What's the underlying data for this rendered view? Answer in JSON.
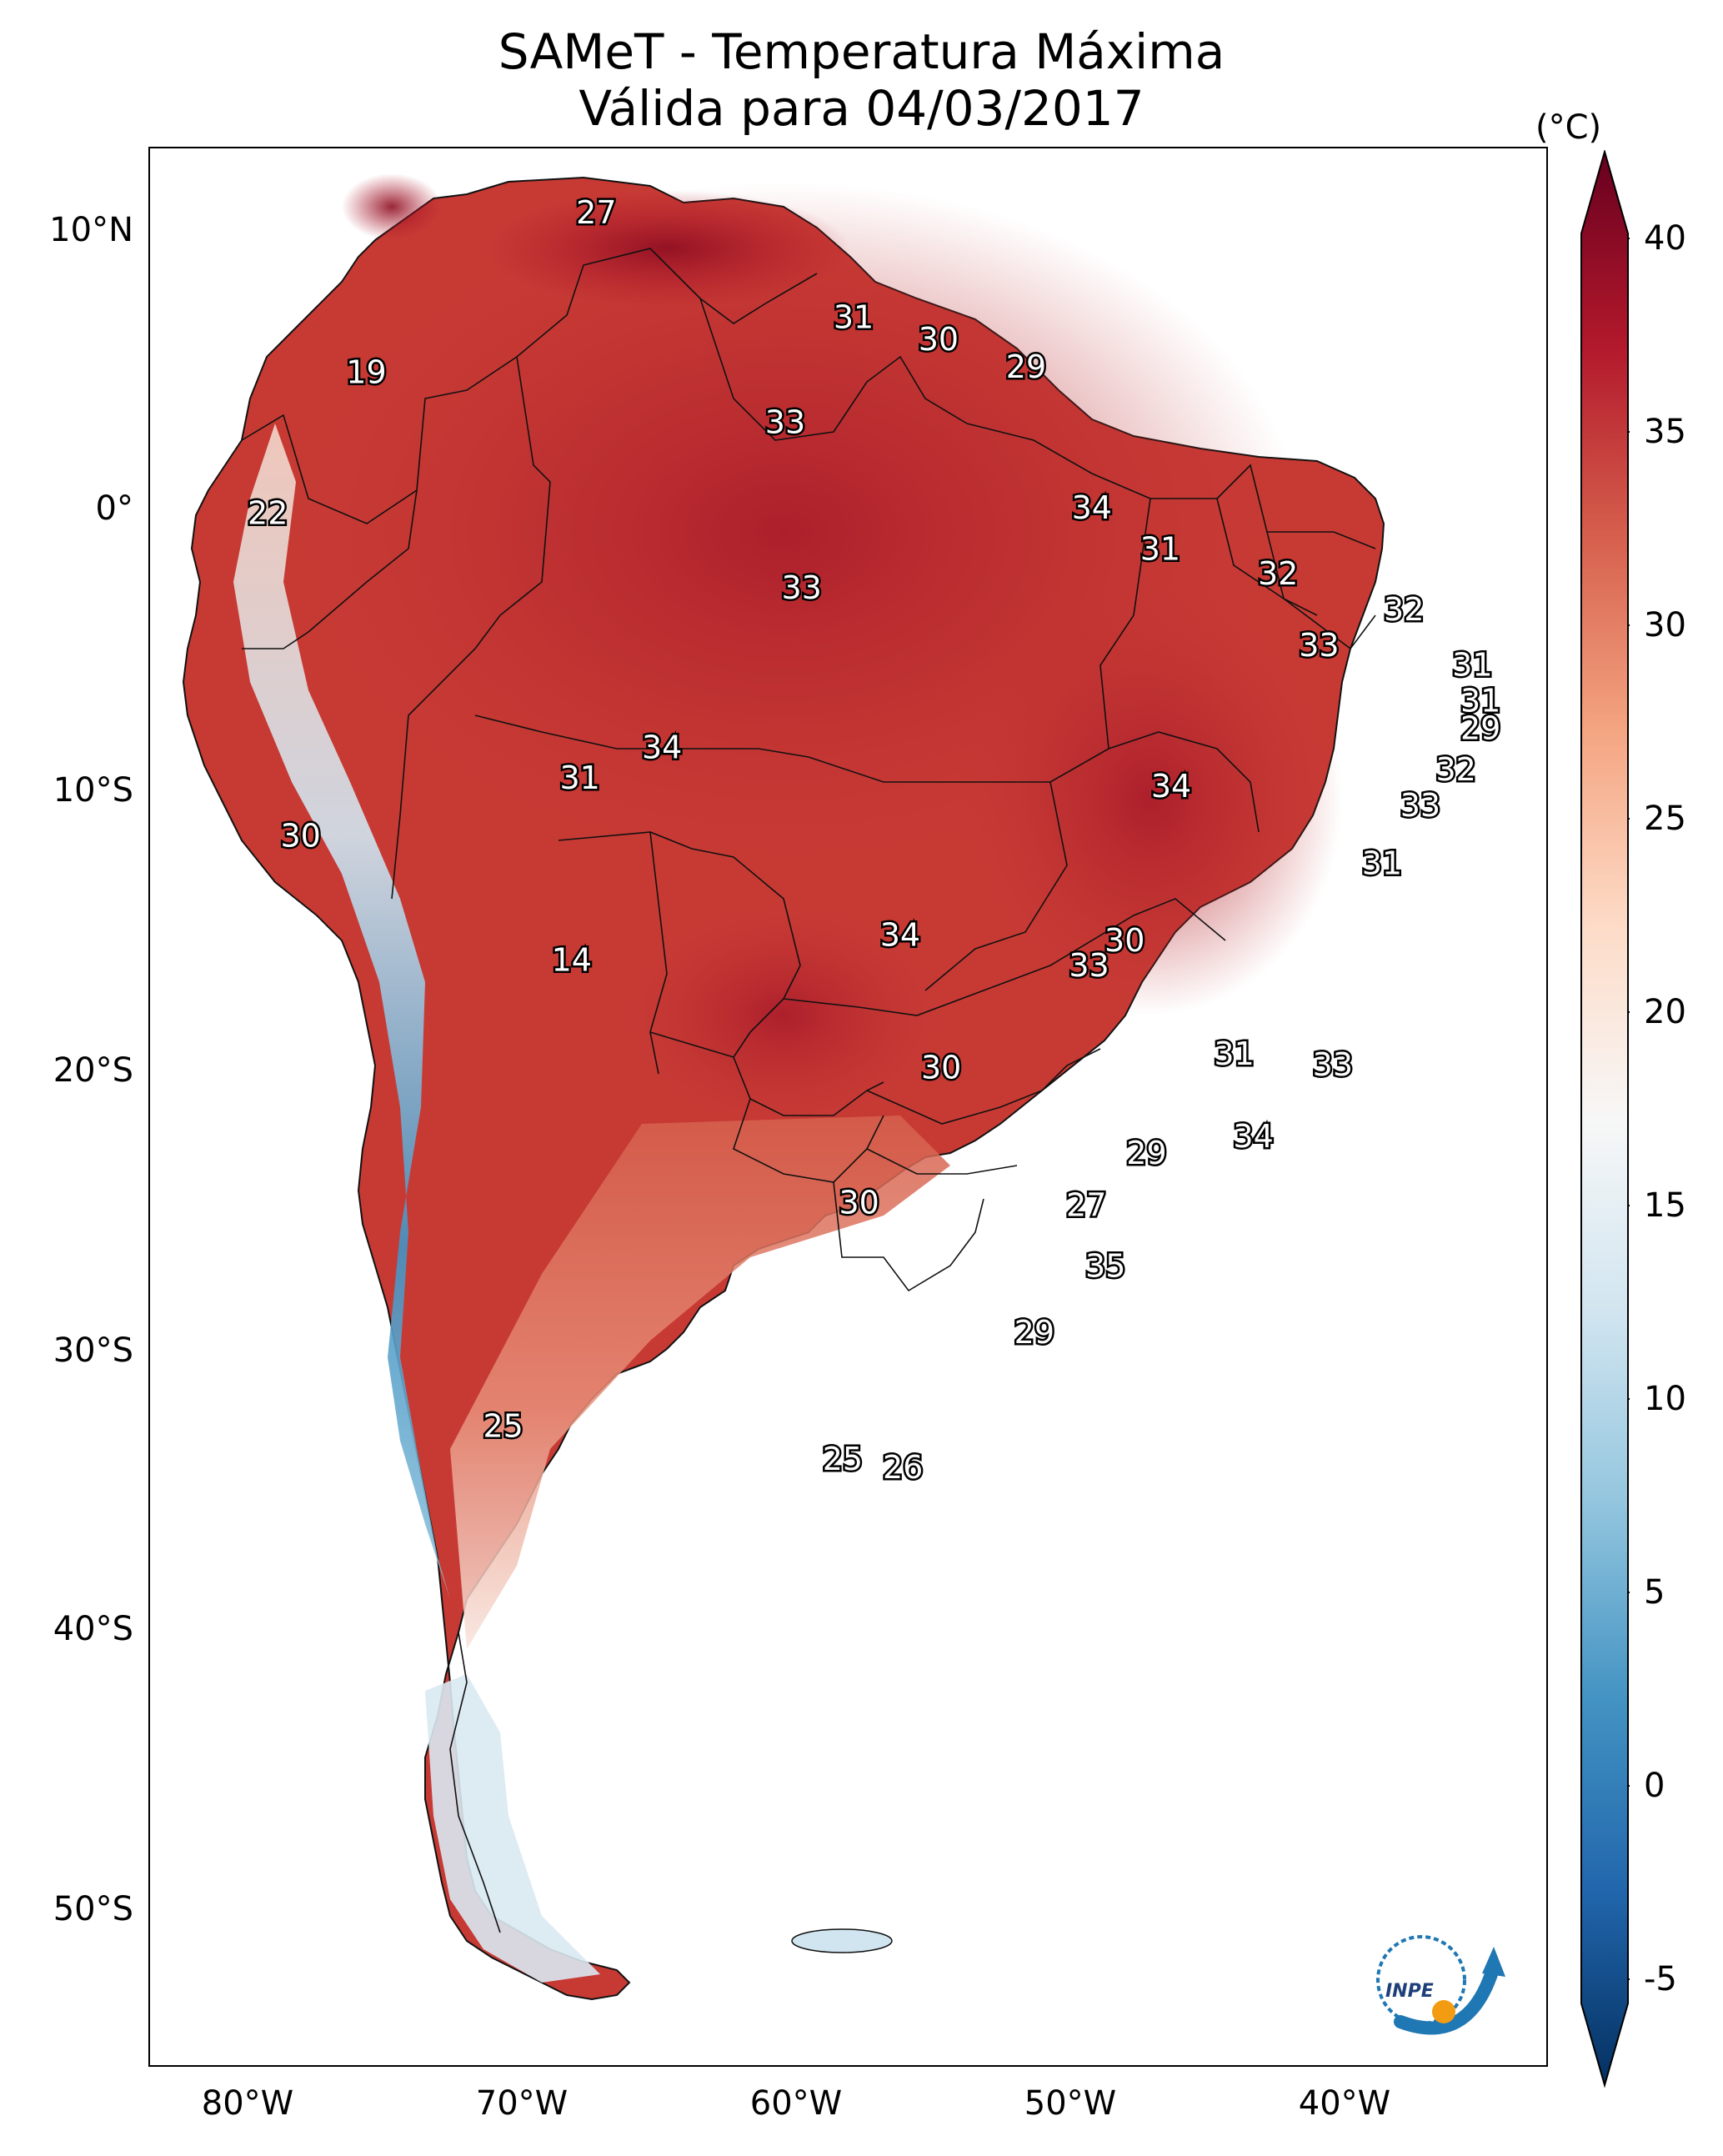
{
  "title": "SAMeT - Temperatura Máxima",
  "subtitle": "Válida para 04/03/2017",
  "colorbar": {
    "unit": "(°C)",
    "ticks": [
      "40",
      "35",
      "30",
      "25",
      "20",
      "15",
      "10",
      "5",
      "0",
      "-5"
    ],
    "min": -5,
    "max": 40,
    "colors": [
      "#053061",
      "#2166ac",
      "#4393c3",
      "#92c5de",
      "#d1e5f0",
      "#f7f7f7",
      "#fddbc7",
      "#f4a582",
      "#d6604d",
      "#b2182b",
      "#67001f"
    ]
  },
  "axes": {
    "lon_ticks": [
      "80°W",
      "70°W",
      "60°W",
      "50°W",
      "40°W"
    ],
    "lat_ticks": [
      "10°N",
      "0°",
      "10°S",
      "20°S",
      "30°S",
      "40°S",
      "50°S"
    ]
  },
  "station_labels": [
    {
      "value": "27",
      "lon": -67.2,
      "lat": 10.6
    },
    {
      "value": "19",
      "lon": -75.6,
      "lat": 4.8
    },
    {
      "value": "31",
      "lon": -57.8,
      "lat": 6.8
    },
    {
      "value": "30",
      "lon": -54.7,
      "lat": 6.0
    },
    {
      "value": "29",
      "lon": -51.5,
      "lat": 5.0
    },
    {
      "value": "33",
      "lon": -60.3,
      "lat": 3.0
    },
    {
      "value": "22",
      "lon": -79.2,
      "lat": -0.3
    },
    {
      "value": "34",
      "lon": -49.1,
      "lat": -0.1
    },
    {
      "value": "31",
      "lon": -46.6,
      "lat": -1.6
    },
    {
      "value": "33",
      "lon": -59.7,
      "lat": -3.0
    },
    {
      "value": "32",
      "lon": -42.3,
      "lat": -2.5
    },
    {
      "value": "32",
      "lon": -37.7,
      "lat": -3.8
    },
    {
      "value": "33",
      "lon": -40.8,
      "lat": -5.1
    },
    {
      "value": "31",
      "lon": -35.2,
      "lat": -5.8
    },
    {
      "value": "31",
      "lon": -34.9,
      "lat": -7.1
    },
    {
      "value": "29",
      "lon": -34.9,
      "lat": -8.1
    },
    {
      "value": "34",
      "lon": -64.8,
      "lat": -8.8
    },
    {
      "value": "31",
      "lon": -67.8,
      "lat": -9.9
    },
    {
      "value": "32",
      "lon": -35.8,
      "lat": -9.6
    },
    {
      "value": "34",
      "lon": -46.2,
      "lat": -10.2
    },
    {
      "value": "33",
      "lon": -37.1,
      "lat": -10.9
    },
    {
      "value": "30",
      "lon": -78.0,
      "lat": -12.0
    },
    {
      "value": "31",
      "lon": -38.5,
      "lat": -13.0
    },
    {
      "value": "34",
      "lon": -56.1,
      "lat": -15.6
    },
    {
      "value": "30",
      "lon": -47.9,
      "lat": -15.8
    },
    {
      "value": "33",
      "lon": -49.2,
      "lat": -16.7
    },
    {
      "value": "14",
      "lon": -68.1,
      "lat": -16.5
    },
    {
      "value": "31",
      "lon": -43.9,
      "lat": -19.9
    },
    {
      "value": "30",
      "lon": -54.6,
      "lat": -20.4
    },
    {
      "value": "33",
      "lon": -40.3,
      "lat": -20.3
    },
    {
      "value": "34",
      "lon": -43.2,
      "lat": -22.9
    },
    {
      "value": "29",
      "lon": -47.1,
      "lat": -23.5
    },
    {
      "value": "30",
      "lon": -57.6,
      "lat": -25.3
    },
    {
      "value": "27",
      "lon": -49.3,
      "lat": -25.4
    },
    {
      "value": "35",
      "lon": -48.6,
      "lat": -27.6
    },
    {
      "value": "29",
      "lon": -51.2,
      "lat": -30.0
    },
    {
      "value": "25",
      "lon": -70.6,
      "lat": -33.4
    },
    {
      "value": "25",
      "lon": -58.2,
      "lat": -34.6
    },
    {
      "value": "26",
      "lon": -56.0,
      "lat": -34.9
    }
  ],
  "logo": {
    "text": "INPE",
    "colors": [
      "#1f77b4",
      "#f39c12"
    ]
  }
}
